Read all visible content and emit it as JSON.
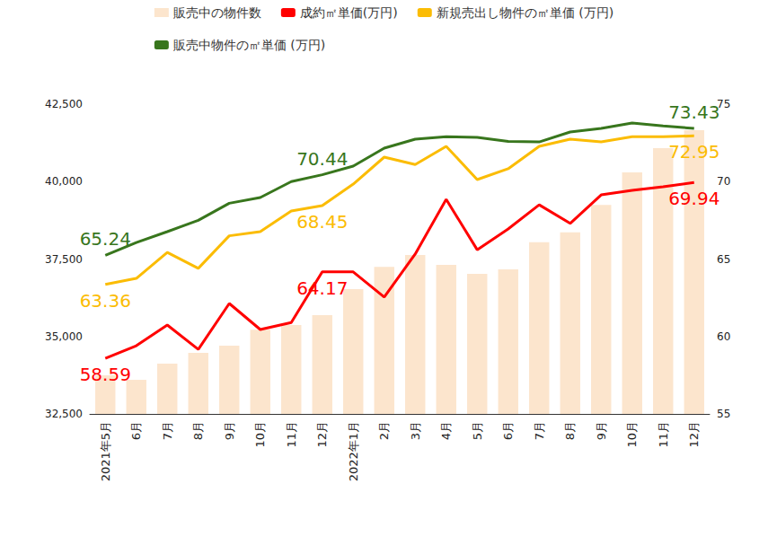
{
  "chart_data": {
    "type": "combo",
    "categories": [
      "2021年5月",
      "6月",
      "7月",
      "8月",
      "9月",
      "10月",
      "11月",
      "12月",
      "2022年1月",
      "2月",
      "3月",
      "4月",
      "5月",
      "6月",
      "7月",
      "8月",
      "9月",
      "10月",
      "11月",
      "12月"
    ],
    "series": [
      {
        "name": "販売中の物件数",
        "type": "bar",
        "color": "#fce5cd",
        "values": [
          33750,
          33600,
          34120,
          34470,
          34700,
          35220,
          35370,
          35690,
          36530,
          37250,
          37630,
          37310,
          37020,
          37170,
          38040,
          38360,
          39250,
          40300,
          41080,
          41660
        ]
      },
      {
        "name": "成約㎡単価(万円)",
        "type": "line",
        "axis": "y2",
        "color": "#ff0000",
        "values": [
          58.59,
          59.4,
          60.74,
          59.17,
          62.13,
          60.45,
          60.9,
          64.17,
          64.17,
          62.54,
          65.32,
          68.86,
          65.6,
          66.94,
          68.5,
          67.3,
          69.14,
          69.43,
          69.67,
          69.94
        ]
      },
      {
        "name": "新規売出し物件の㎡単価 (万円)",
        "type": "line",
        "axis": "y2",
        "color": "#fbbc04",
        "values": [
          63.36,
          63.75,
          65.43,
          64.4,
          66.5,
          66.77,
          68.1,
          68.45,
          69.84,
          71.58,
          71.1,
          72.28,
          70.13,
          70.83,
          72.28,
          72.74,
          72.57,
          72.9,
          72.9,
          72.95
        ]
      },
      {
        "name": "販売中物件の㎡単価 (万円)",
        "type": "line",
        "axis": "y2",
        "color": "#38761d",
        "values": [
          65.24,
          66.07,
          66.77,
          67.5,
          68.6,
          68.97,
          70.0,
          70.44,
          71.0,
          72.16,
          72.74,
          72.9,
          72.86,
          72.6,
          72.56,
          73.2,
          73.43,
          73.78,
          73.6,
          73.43
        ]
      }
    ],
    "annotations": [
      {
        "series": "成約㎡単価(万円)",
        "index": 0,
        "text": "58.59"
      },
      {
        "series": "成約㎡単価(万円)",
        "index": 7,
        "text": "64.17"
      },
      {
        "series": "成約㎡単価(万円)",
        "index": 19,
        "text": "69.94"
      },
      {
        "series": "新規売出し物件の㎡単価 (万円)",
        "index": 0,
        "text": "63.36"
      },
      {
        "series": "新規売出し物件の㎡単価 (万円)",
        "index": 7,
        "text": "68.45"
      },
      {
        "series": "新規売出し物件の㎡単価 (万円)",
        "index": 19,
        "text": "72.95"
      },
      {
        "series": "販売中物件の㎡単価 (万円)",
        "index": 0,
        "text": "65.24"
      },
      {
        "series": "販売中物件の㎡単価 (万円)",
        "index": 7,
        "text": "70.44"
      },
      {
        "series": "販売中物件の㎡単価 (万円)",
        "index": 19,
        "text": "73.43"
      }
    ],
    "ylim": [
      32500,
      42500
    ],
    "yticks": [
      {
        "value": 32500,
        "label": "32,500"
      },
      {
        "value": 35000,
        "label": "35,000"
      },
      {
        "value": 37500,
        "label": "37,500"
      },
      {
        "value": 40000,
        "label": "40,000"
      },
      {
        "value": 42500,
        "label": "42,500"
      }
    ],
    "y2lim": [
      55,
      75
    ],
    "y2ticks": [
      55,
      60,
      65,
      70,
      75
    ],
    "grid": false,
    "legend": "top"
  }
}
